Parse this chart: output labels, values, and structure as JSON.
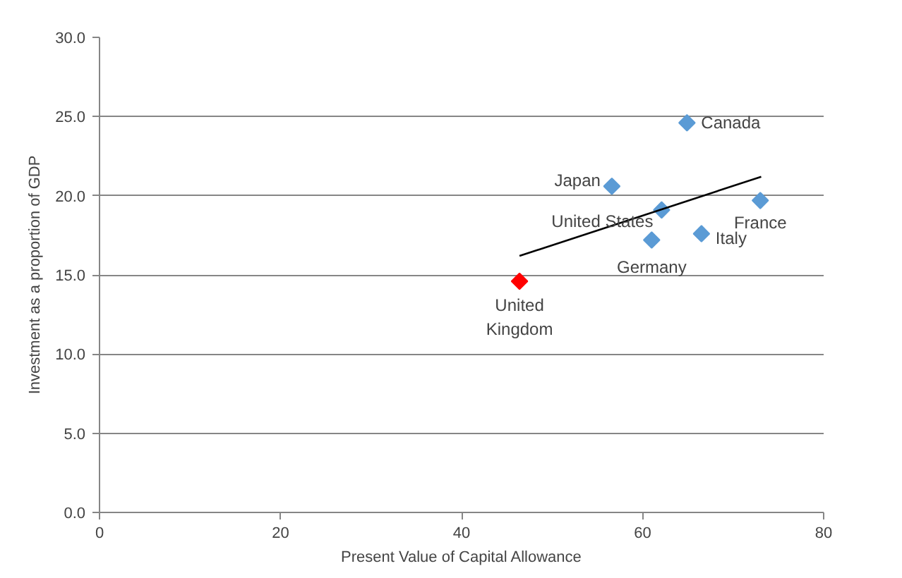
{
  "chart_data": {
    "type": "scatter",
    "xlabel": "Present Value of Capital Allowance",
    "ylabel": "Investment as a proportion of GDP",
    "x": [
      64.9,
      56.6,
      62.1,
      73.0,
      66.5,
      61.0,
      46.4
    ],
    "series": [
      {
        "marker": "diamond",
        "colors": [
          "#5b9bd5",
          "#5b9bd5",
          "#5b9bd5",
          "#5b9bd5",
          "#5b9bd5",
          "#5b9bd5",
          "#ff0000"
        ],
        "values": [
          24.6,
          20.6,
          19.1,
          19.7,
          17.6,
          17.2,
          14.6
        ]
      },
      {
        "type": "line",
        "color": "#000000",
        "x": [
          46.4,
          73.1
        ],
        "values": [
          16.2,
          21.2
        ]
      }
    ],
    "annotations": [
      {
        "text": "Canada",
        "x": 64.9,
        "y": 24.6
      },
      {
        "text": "Japan",
        "x": 56.6,
        "y": 20.6
      },
      {
        "text": "United States",
        "x": 62.1,
        "y": 19.1
      },
      {
        "text": "France",
        "x": 73.0,
        "y": 19.7
      },
      {
        "text": "Italy",
        "x": 66.5,
        "y": 17.6
      },
      {
        "text": "Germany",
        "x": 61.0,
        "y": 17.2
      },
      {
        "text": "United\nKingdom",
        "x": 46.4,
        "y": 14.6
      }
    ],
    "grid": "y",
    "xlim": [
      0,
      80
    ],
    "ylim": [
      0,
      30
    ],
    "xticks": [
      0,
      20,
      40,
      60,
      80
    ],
    "yticks": [
      {
        "value": 0,
        "label": "0.0"
      },
      {
        "value": 5,
        "label": "5.0"
      },
      {
        "value": 10,
        "label": "10.0"
      },
      {
        "value": 15,
        "label": "15.0"
      },
      {
        "value": 20,
        "label": "20.0"
      },
      {
        "value": 25,
        "label": "25.0"
      },
      {
        "value": 30,
        "label": "30.0"
      }
    ]
  }
}
